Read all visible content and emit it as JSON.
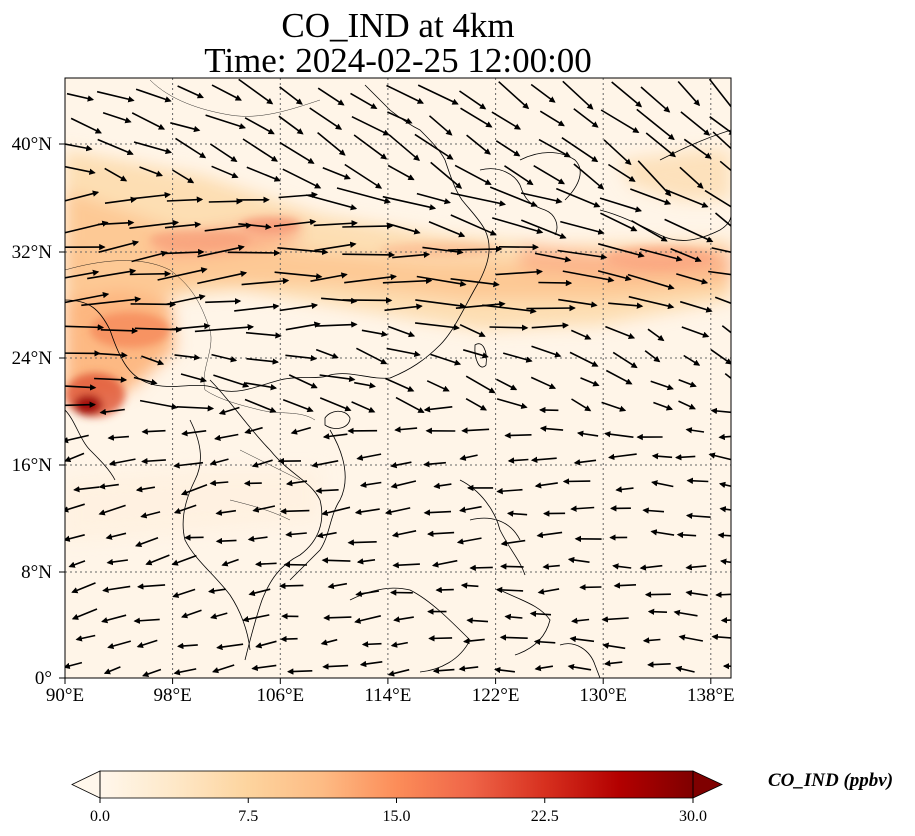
{
  "title_line1": "CO_IND at 4km",
  "title_line2": "Time: 2024-02-25 12:00:00",
  "lon_ticks": [
    "90°E",
    "98°E",
    "106°E",
    "114°E",
    "122°E",
    "130°E",
    "138°E"
  ],
  "lat_ticks": [
    "40°N",
    "32°N",
    "24°N",
    "16°N",
    "8°N",
    "0°"
  ],
  "colorbar": {
    "label": "CO_IND (ppbv)",
    "ticks": [
      "0.0",
      "7.5",
      "15.0",
      "22.5",
      "30.0"
    ],
    "min": 0,
    "max": 30,
    "colormap": "OrRd",
    "colors": [
      "#fff7ec",
      "#fee8c8",
      "#fdd49e",
      "#fdbb84",
      "#fc8d59",
      "#ef6548",
      "#d7301f",
      "#b30000",
      "#7f0000"
    ],
    "extend": "both"
  },
  "map": {
    "lon_range": [
      90,
      139.5
    ],
    "lat_range": [
      0,
      44.5
    ],
    "gridlines": "dotted",
    "features": [
      "coastlines",
      "country borders",
      "wind vectors"
    ]
  }
}
